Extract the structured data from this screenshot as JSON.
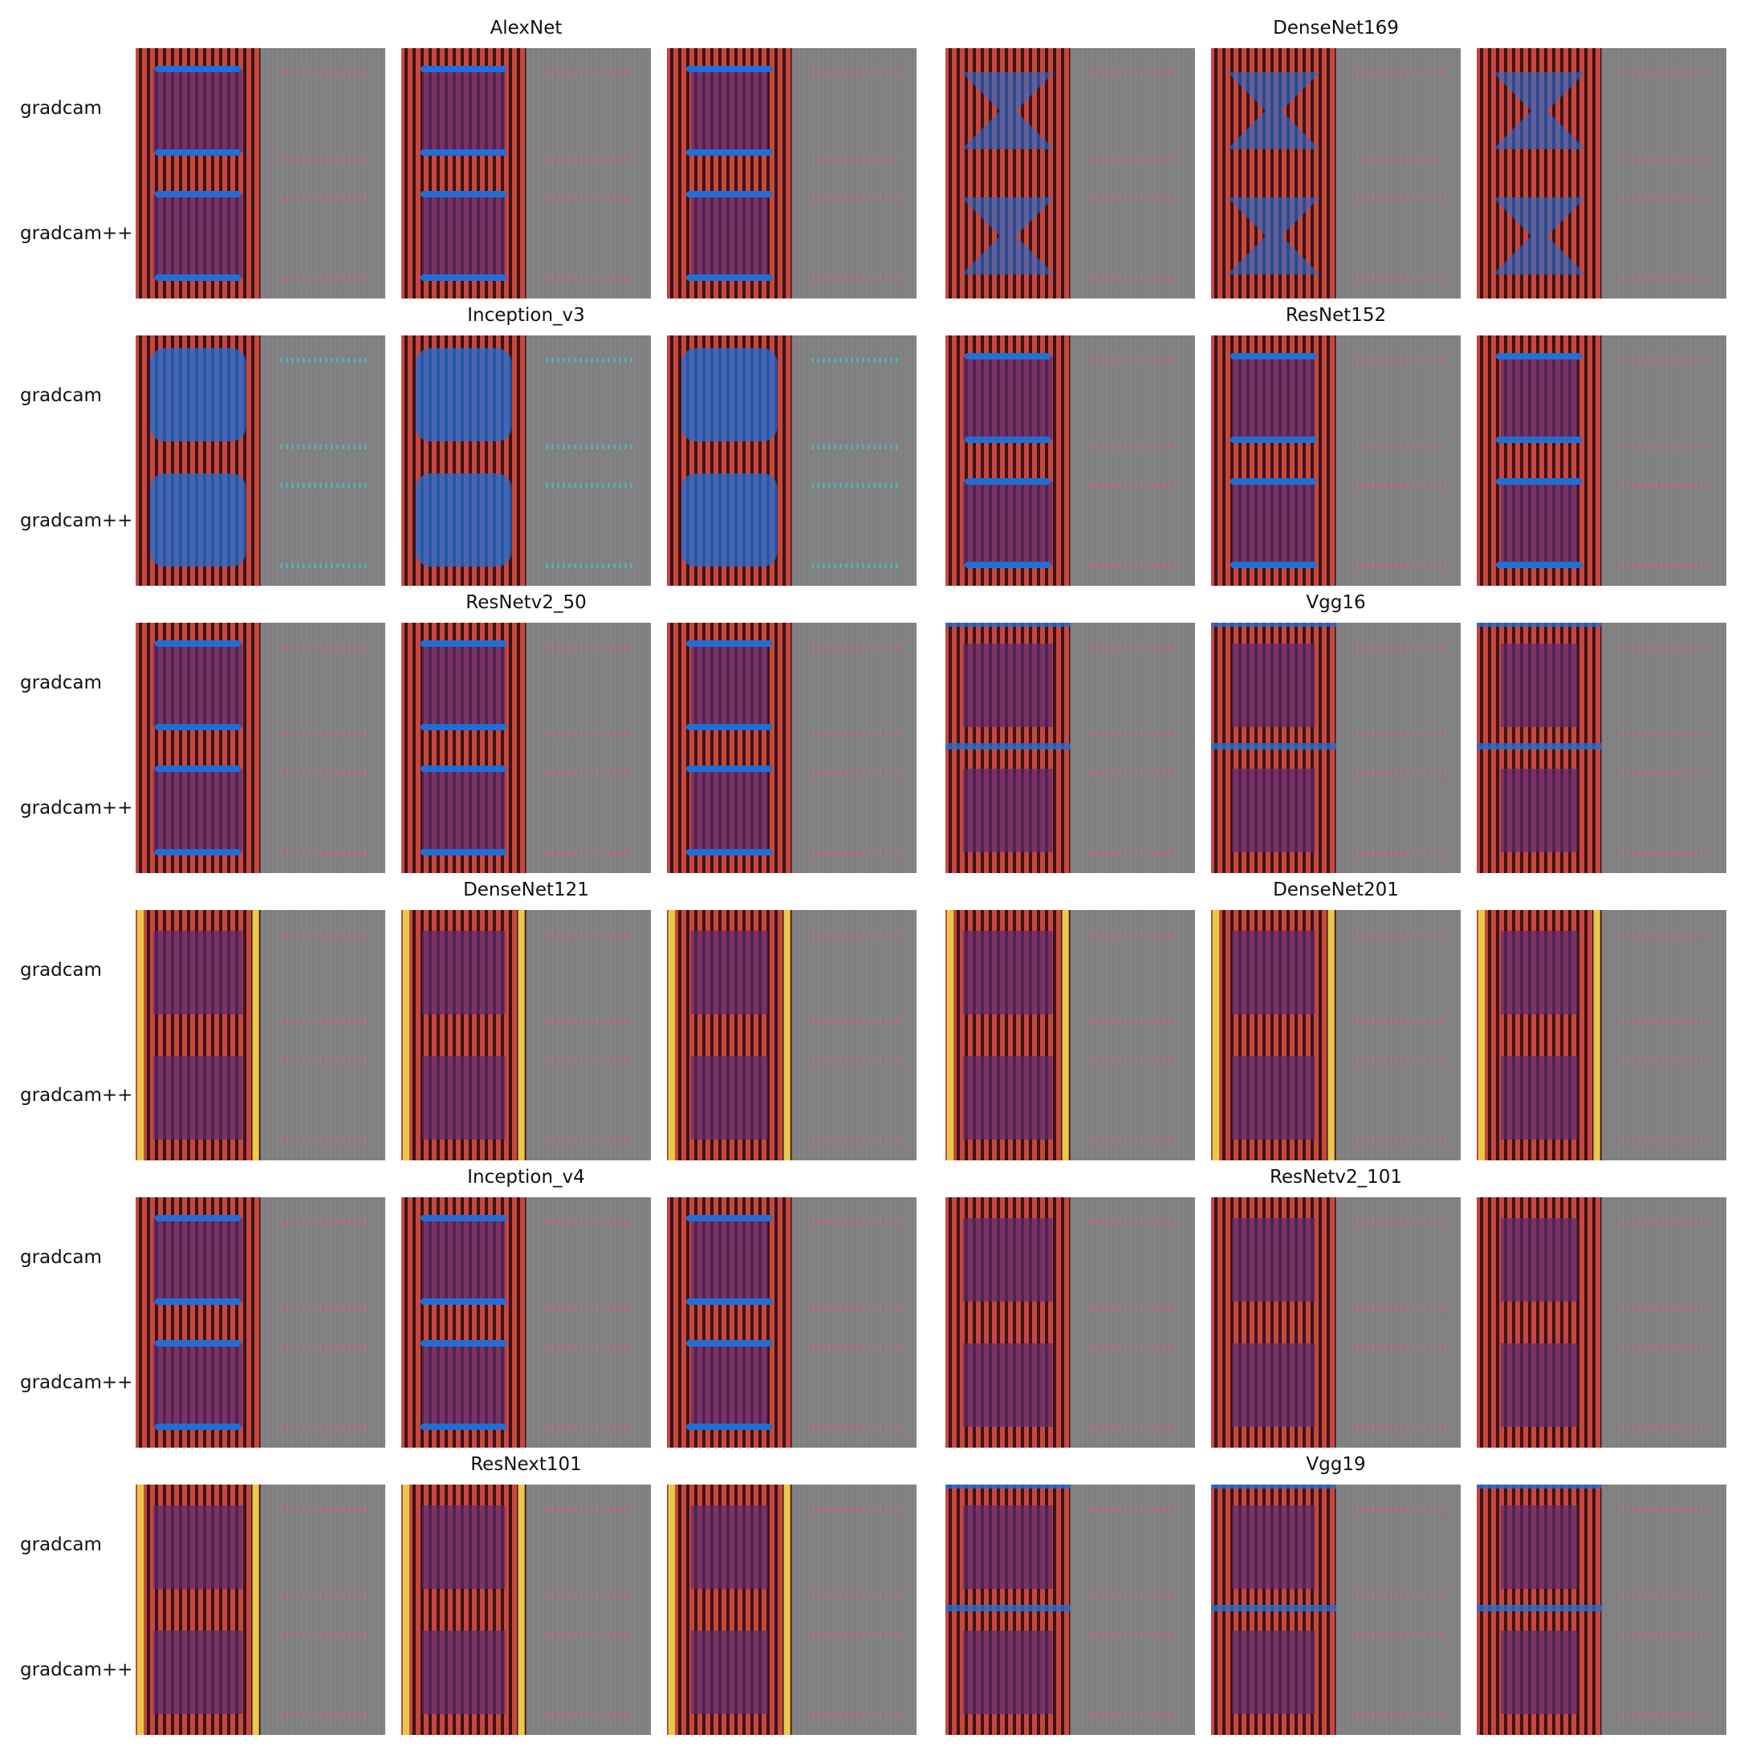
{
  "figure": {
    "row_labels": [
      "gradcam",
      "gradcam++"
    ],
    "models": [
      {
        "name": "AlexNet"
      },
      {
        "name": "DenseNet169"
      },
      {
        "name": "Inception_v3"
      },
      {
        "name": "ResNet152"
      },
      {
        "name": "ResNetv2_50"
      },
      {
        "name": "Vgg16"
      },
      {
        "name": "DenseNet121"
      },
      {
        "name": "DenseNet201"
      },
      {
        "name": "Inception_v4"
      },
      {
        "name": "ResNetv2_101"
      },
      {
        "name": "ResNext101"
      },
      {
        "name": "Vgg19"
      }
    ],
    "colors": {
      "stripe_dark": "#3a1418",
      "stripe_red": "#c8473c",
      "overlay_purple": "#5a2a70",
      "overlay_blue": "#1f6fd8",
      "edge_yellow": "#e8d24a",
      "gradient_gray": "#808080",
      "gradient_tick_pink": "#d85a8a",
      "gradient_tick_cyan": "#4ac8d8"
    }
  }
}
